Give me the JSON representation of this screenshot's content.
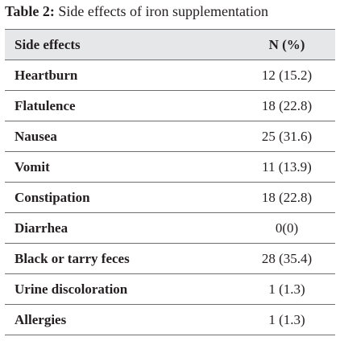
{
  "caption": {
    "label": "Table 2:",
    "text": "Side effects of iron supplementation"
  },
  "table": {
    "header": [
      "Side effects",
      "N (%)"
    ],
    "rows": [
      [
        "Heartburn",
        "12 (15.2)"
      ],
      [
        "Flatulence",
        "18 (22.8)"
      ],
      [
        "Nausea",
        "25 (31.6)"
      ],
      [
        "Vomit",
        "11 (13.9)"
      ],
      [
        "Constipation",
        "18 (22.8)"
      ],
      [
        "Diarrhea",
        "0(0)"
      ],
      [
        "Black or tarry feces",
        "28 (35.4)"
      ],
      [
        "Urine discoloration",
        "1 (1.3)"
      ],
      [
        "Allergies",
        "1 (1.3)"
      ]
    ]
  }
}
